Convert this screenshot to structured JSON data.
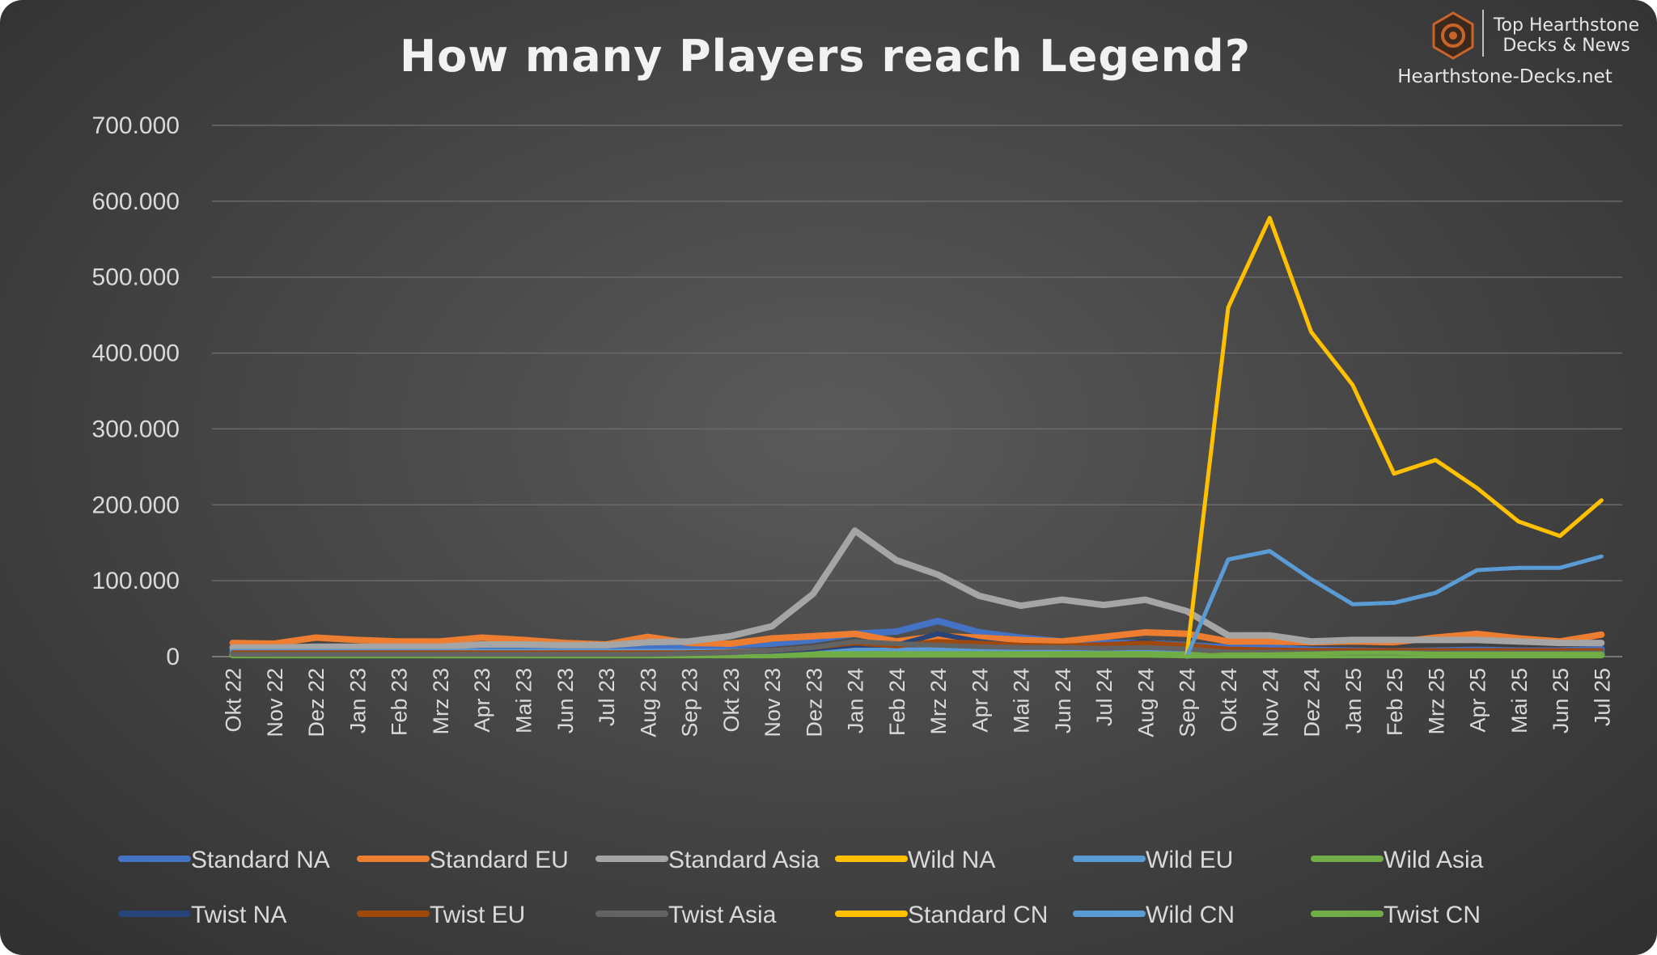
{
  "brand": {
    "line1": "Top Hearthstone",
    "line2": "Decks & News",
    "site": "Hearthstone-Decks.net",
    "icon": "hearthstone-logo-icon",
    "accent": "#c8642a"
  },
  "chart_data": {
    "type": "line",
    "title": "How many Players reach Legend?",
    "xlabel": "",
    "ylabel": "",
    "ylim": [
      0,
      700000
    ],
    "yticks": [
      0,
      100000,
      200000,
      300000,
      400000,
      500000,
      600000,
      700000
    ],
    "ytick_labels": [
      "0",
      "100.000",
      "200.000",
      "300.000",
      "400.000",
      "500.000",
      "600.000",
      "700.000"
    ],
    "grid": true,
    "legend_position": "bottom",
    "categories": [
      "Okt 22",
      "Nov 22",
      "Dez 22",
      "Jan 23",
      "Feb 23",
      "Mrz 23",
      "Apr 23",
      "Mai 23",
      "Jun 23",
      "Jul 23",
      "Aug 23",
      "Sep 23",
      "Okt 23",
      "Nov 23",
      "Dez 23",
      "Jan 24",
      "Feb 24",
      "Mrz 24",
      "Apr 24",
      "Mai 24",
      "Jun 24",
      "Jul 24",
      "Aug 24",
      "Sep 24",
      "Okt 24",
      "Nov 24",
      "Dez 24",
      "Jan 25",
      "Feb 25",
      "Mrz 25",
      "Apr 25",
      "Mai 25",
      "Jun 25",
      "Jul 25"
    ],
    "series": [
      {
        "name": "Standard NA",
        "color": "#4472c4",
        "width": 8,
        "values": [
          10000,
          10000,
          12000,
          12000,
          11000,
          11000,
          12000,
          12000,
          11000,
          11000,
          13000,
          13000,
          15000,
          17000,
          22000,
          30000,
          33000,
          47000,
          32000,
          25000,
          20000,
          18000,
          18000,
          15000,
          12000,
          12000,
          9000,
          8000,
          7000,
          8000,
          9000,
          8000,
          8000,
          10000
        ]
      },
      {
        "name": "Standard EU",
        "color": "#ed7d31",
        "width": 8,
        "values": [
          18000,
          17000,
          25000,
          22000,
          20000,
          20000,
          25000,
          22000,
          18000,
          16000,
          26000,
          18000,
          17000,
          24000,
          27000,
          30000,
          20000,
          27000,
          25000,
          22000,
          20000,
          26000,
          32000,
          30000,
          20000,
          20000,
          19000,
          20000,
          19000,
          25000,
          30000,
          24000,
          20000,
          29000
        ]
      },
      {
        "name": "Standard Asia",
        "color": "#a5a5a5",
        "width": 8,
        "values": [
          12000,
          12000,
          13000,
          13000,
          13000,
          13000,
          16000,
          16000,
          15000,
          15000,
          19000,
          20000,
          27000,
          40000,
          83000,
          166000,
          127000,
          108000,
          80000,
          67000,
          75000,
          68000,
          75000,
          60000,
          28000,
          28000,
          20000,
          22000,
          22000,
          22000,
          22000,
          20000,
          18000,
          18000
        ]
      },
      {
        "name": "Wild NA",
        "color": "#ffc000",
        "width": 8,
        "values": [
          3000,
          3000,
          3000,
          3000,
          3000,
          3000,
          3000,
          3000,
          3000,
          3000,
          3000,
          3000,
          3000,
          4000,
          5000,
          6000,
          5000,
          5000,
          5000,
          4000,
          4000,
          4000,
          4000,
          3000,
          3000,
          3000,
          3000,
          3000,
          3000,
          3000,
          3000,
          3000,
          3000,
          3000
        ]
      },
      {
        "name": "Wild EU",
        "color": "#5b9bd5",
        "width": 8,
        "values": [
          6000,
          6000,
          6000,
          6000,
          6000,
          6000,
          6000,
          6000,
          6000,
          6000,
          6000,
          6000,
          6000,
          7000,
          8000,
          9000,
          8000,
          8000,
          8000,
          7000,
          7000,
          7000,
          7000,
          6000,
          6000,
          6000,
          6000,
          6000,
          6000,
          6000,
          6000,
          6000,
          6000,
          6000
        ]
      },
      {
        "name": "Wild Asia",
        "color": "#70ad47",
        "width": 8,
        "values": [
          2000,
          2000,
          2000,
          2000,
          2000,
          2000,
          2000,
          2000,
          2000,
          2000,
          2000,
          2000,
          2000,
          2000,
          3000,
          3000,
          3000,
          3000,
          3000,
          3000,
          3000,
          3000,
          3000,
          2000,
          2000,
          2000,
          2000,
          2000,
          2000,
          2000,
          2000,
          2000,
          2000,
          2000
        ]
      },
      {
        "name": "Twist NA",
        "color": "#264478",
        "width": 6,
        "values": [
          4000,
          4000,
          4000,
          4000,
          4000,
          4000,
          4000,
          4000,
          4000,
          4000,
          4000,
          5000,
          6000,
          7000,
          10000,
          15000,
          15000,
          30000,
          20000,
          14000,
          12000,
          14000,
          20000,
          10000,
          8000,
          7000,
          6000,
          6000,
          6000,
          6000,
          6000,
          6000,
          6000,
          6000
        ]
      },
      {
        "name": "Twist EU",
        "color": "#9e480e",
        "width": 6,
        "values": [
          5000,
          5000,
          5000,
          5000,
          5000,
          5000,
          5000,
          5000,
          5000,
          5000,
          5000,
          5000,
          6000,
          8000,
          12000,
          18000,
          14000,
          20000,
          18000,
          15000,
          14000,
          16000,
          18000,
          15000,
          10000,
          9000,
          8000,
          8000,
          8000,
          8000,
          8000,
          8000,
          8000,
          8000
        ]
      },
      {
        "name": "Twist Asia",
        "color": "#636363",
        "width": 6,
        "values": [
          3000,
          3000,
          3000,
          3000,
          3000,
          3000,
          3000,
          3000,
          3000,
          3000,
          3000,
          4000,
          5000,
          8000,
          12000,
          20000,
          17000,
          15000,
          13000,
          12000,
          12000,
          11000,
          12000,
          10000,
          6000,
          6000,
          5000,
          5000,
          5000,
          5000,
          5000,
          5000,
          5000,
          5000
        ]
      },
      {
        "name": "Standard CN",
        "color": "#ffc000",
        "width": 5,
        "values": [
          null,
          null,
          null,
          null,
          null,
          null,
          null,
          null,
          null,
          null,
          null,
          null,
          null,
          null,
          null,
          null,
          null,
          null,
          null,
          null,
          null,
          null,
          null,
          0,
          460000,
          578000,
          428000,
          358000,
          241000,
          259000,
          222000,
          178000,
          159000,
          206000
        ]
      },
      {
        "name": "Wild CN",
        "color": "#5b9bd5",
        "width": 5,
        "values": [
          null,
          null,
          null,
          null,
          null,
          null,
          null,
          null,
          null,
          null,
          null,
          null,
          null,
          null,
          null,
          null,
          null,
          null,
          null,
          null,
          null,
          null,
          null,
          0,
          128000,
          139000,
          102000,
          69000,
          71000,
          84000,
          114000,
          117000,
          117000,
          132000
        ]
      },
      {
        "name": "Twist CN",
        "color": "#70ad47",
        "width": 5,
        "values": [
          null,
          null,
          null,
          null,
          null,
          null,
          null,
          null,
          null,
          null,
          null,
          null,
          null,
          null,
          null,
          null,
          null,
          null,
          null,
          null,
          null,
          null,
          null,
          0,
          3000,
          3000,
          4000,
          5000,
          5000,
          4000,
          4000,
          4000,
          4000,
          4000
        ]
      }
    ]
  }
}
